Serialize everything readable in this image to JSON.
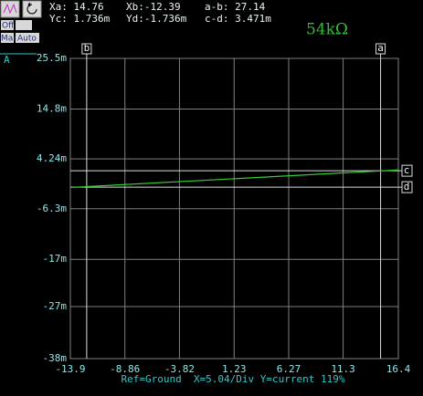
{
  "toolbar": {
    "buttons": [
      "Off",
      "Man",
      "Auto"
    ],
    "readouts": [
      "Xa: 14.76",
      "Xb:-12.39",
      "a-b: 27.14",
      "Yc: 1.736m",
      "Yd:-1.736m",
      "c-d: 3.471m"
    ],
    "resistance": "54kΩ"
  },
  "chart_data": {
    "type": "line",
    "channel": "A",
    "caption": "Ref=Ground  X=5.04/Div Y=current 119%",
    "x": [
      -13.9,
      16.4
    ],
    "series": [
      {
        "color": "#33cc33",
        "values": [
          -0.0018,
          0.0019
        ]
      }
    ],
    "xlim": [
      -13.9,
      16.4
    ],
    "xticks": [
      -13.9,
      -8.86,
      -3.82,
      1.23,
      6.27,
      11.3,
      16.4
    ],
    "ylim": [
      -0.038,
      0.0255
    ],
    "yticks": [
      {
        "value": -0.038,
        "label": "-38m"
      },
      {
        "value": -0.027,
        "label": "-27m"
      },
      {
        "value": -0.017,
        "label": "-17m"
      },
      {
        "value": -0.0063,
        "label": "-6.3m"
      },
      {
        "value": 0.00424,
        "label": "4.24m"
      },
      {
        "value": 0.0148,
        "label": "14.8m"
      },
      {
        "value": 0.0255,
        "label": "25.5m"
      }
    ],
    "grid": true,
    "cursors": [
      {
        "name": "a",
        "axis": "x",
        "value": 14.76
      },
      {
        "name": "b",
        "axis": "x",
        "value": -12.39
      },
      {
        "name": "c",
        "axis": "y",
        "value": 0.001736
      },
      {
        "name": "d",
        "axis": "y",
        "value": -0.001736
      }
    ]
  }
}
